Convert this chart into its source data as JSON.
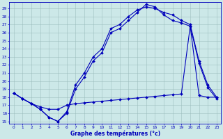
{
  "xlabel": "Graphe des températures (°c)",
  "xlim": [
    -0.5,
    23.5
  ],
  "ylim": [
    14.7,
    29.8
  ],
  "yticks": [
    15,
    16,
    17,
    18,
    19,
    20,
    21,
    22,
    23,
    24,
    25,
    26,
    27,
    28,
    29
  ],
  "xticks": [
    0,
    1,
    2,
    3,
    4,
    5,
    6,
    7,
    8,
    9,
    10,
    11,
    12,
    13,
    14,
    15,
    16,
    17,
    18,
    19,
    20,
    21,
    22,
    23
  ],
  "line_color": "#0000bb",
  "bg_color": "#cce8e8",
  "grid_color": "#99bbbb",
  "line1": {
    "x": [
      0,
      1,
      2,
      3,
      4,
      5,
      6,
      7,
      8,
      9,
      10,
      11,
      12,
      13,
      14,
      15,
      16,
      17,
      18,
      19,
      20,
      21,
      22,
      23
    ],
    "y": [
      18.5,
      17.8,
      17.2,
      16.5,
      15.5,
      15.0,
      16.2,
      19.5,
      21.0,
      23.0,
      24.0,
      26.5,
      27.0,
      28.0,
      28.8,
      29.2,
      29.0,
      28.5,
      28.2,
      27.5,
      27.0,
      22.5,
      19.5,
      18.0
    ]
  },
  "line2": {
    "x": [
      0,
      1,
      2,
      3,
      4,
      5,
      6,
      7,
      8,
      9,
      10,
      11,
      12,
      13,
      14,
      15,
      16,
      17,
      18,
      19,
      20,
      21,
      22,
      23
    ],
    "y": [
      18.5,
      17.8,
      17.2,
      16.5,
      15.5,
      15.0,
      16.0,
      19.0,
      20.5,
      22.5,
      23.5,
      26.0,
      26.5,
      27.5,
      28.5,
      29.5,
      29.2,
      28.2,
      27.5,
      27.2,
      26.8,
      22.2,
      19.2,
      17.8
    ]
  },
  "line3": {
    "x": [
      0,
      1,
      2,
      3,
      4,
      5,
      6,
      7,
      8,
      9,
      10,
      11,
      12,
      13,
      14,
      15,
      16,
      17,
      18,
      19,
      20,
      21,
      22,
      23
    ],
    "y": [
      18.5,
      17.8,
      17.2,
      16.8,
      16.5,
      16.5,
      17.0,
      17.2,
      17.3,
      17.4,
      17.5,
      17.6,
      17.7,
      17.8,
      17.9,
      18.0,
      18.1,
      18.2,
      18.3,
      18.4,
      26.8,
      18.2,
      18.0,
      18.0
    ]
  }
}
